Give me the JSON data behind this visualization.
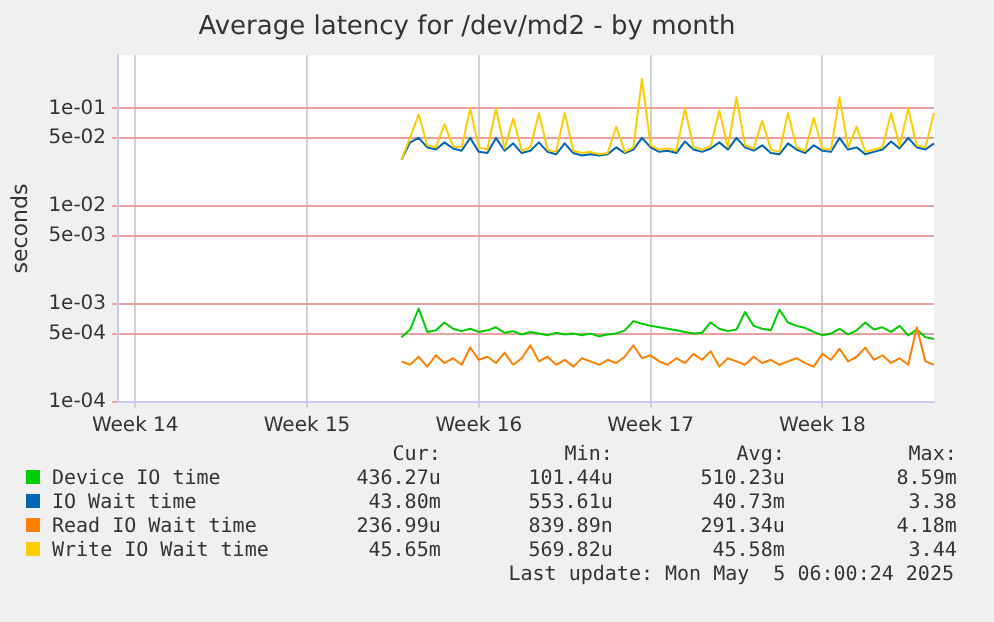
{
  "chart_data": {
    "type": "line",
    "title": "Average latency for /dev/md2 - by month",
    "ylabel": "seconds",
    "log": "y",
    "grid": true,
    "legend": "bottom",
    "marker": "none",
    "line_style": "solid",
    "ylim": [
      0.0001,
      0.35
    ],
    "yticks": [
      {
        "value": 0.1,
        "label": "1e-01"
      },
      {
        "value": 0.05,
        "label": "5e-02"
      },
      {
        "value": 0.01,
        "label": "1e-02"
      },
      {
        "value": 0.005,
        "label": "5e-03"
      },
      {
        "value": 0.001,
        "label": "1e-03"
      },
      {
        "value": 0.0005,
        "label": "5e-04"
      },
      {
        "value": 0.0001,
        "label": "1e-04"
      }
    ],
    "categories": [
      null,
      null,
      "Week 14",
      null,
      null,
      null,
      null,
      null,
      null,
      null,
      null,
      null,
      null,
      null,
      null,
      null,
      null,
      null,
      null,
      null,
      null,
      null,
      "Week 15",
      null,
      null,
      null,
      null,
      null,
      null,
      null,
      null,
      null,
      null,
      null,
      null,
      null,
      null,
      null,
      null,
      null,
      null,
      null,
      "Week 16",
      null,
      null,
      null,
      null,
      null,
      null,
      null,
      null,
      null,
      null,
      null,
      null,
      null,
      null,
      null,
      null,
      null,
      null,
      null,
      "Week 17",
      null,
      null,
      null,
      null,
      null,
      null,
      null,
      null,
      null,
      null,
      null,
      null,
      null,
      null,
      null,
      null,
      null,
      null,
      null,
      "Week 18",
      null,
      null,
      null,
      null,
      null,
      null,
      null,
      null,
      null,
      null,
      null,
      null,
      null
    ],
    "series": [
      {
        "name": "Device IO time",
        "color": "#00cc00",
        "values": [
          null,
          null,
          null,
          null,
          null,
          null,
          null,
          null,
          null,
          null,
          null,
          null,
          null,
          null,
          null,
          null,
          null,
          null,
          null,
          null,
          null,
          null,
          null,
          null,
          null,
          null,
          null,
          null,
          null,
          null,
          null,
          null,
          null,
          0.00046,
          0.00055,
          0.0009,
          0.00052,
          0.00054,
          0.00065,
          0.00056,
          0.00053,
          0.00056,
          0.00052,
          0.00054,
          0.00058,
          0.00051,
          0.00053,
          0.00049,
          0.00052,
          0.0005,
          0.00048,
          0.00051,
          0.00049,
          0.0005,
          0.00048,
          0.0005,
          0.00047,
          0.00049,
          0.0005,
          0.00054,
          0.00067,
          0.00063,
          0.0006,
          0.00058,
          0.00056,
          0.00054,
          0.00052,
          0.0005,
          0.00051,
          0.00065,
          0.00056,
          0.00053,
          0.00055,
          0.00083,
          0.0006,
          0.00056,
          0.00054,
          0.00088,
          0.00065,
          0.0006,
          0.00057,
          0.00052,
          0.00048,
          0.0005,
          0.00056,
          0.00049,
          0.00054,
          0.00065,
          0.00055,
          0.00058,
          0.00052,
          0.0006,
          0.00048,
          0.00055,
          0.00046,
          0.00044
        ]
      },
      {
        "name": "IO Wait time",
        "color": "#0066b3",
        "values": [
          null,
          null,
          null,
          null,
          null,
          null,
          null,
          null,
          null,
          null,
          null,
          null,
          null,
          null,
          null,
          null,
          null,
          null,
          null,
          null,
          null,
          null,
          null,
          null,
          null,
          null,
          null,
          null,
          null,
          null,
          null,
          null,
          null,
          0.03,
          0.045,
          0.05,
          0.04,
          0.038,
          0.045,
          0.039,
          0.037,
          0.05,
          0.036,
          0.035,
          0.05,
          0.037,
          0.044,
          0.035,
          0.037,
          0.045,
          0.036,
          0.034,
          0.044,
          0.035,
          0.033,
          0.034,
          0.033,
          0.034,
          0.04,
          0.035,
          0.038,
          0.05,
          0.04,
          0.036,
          0.037,
          0.035,
          0.046,
          0.038,
          0.036,
          0.039,
          0.045,
          0.038,
          0.05,
          0.04,
          0.037,
          0.042,
          0.035,
          0.034,
          0.044,
          0.038,
          0.035,
          0.042,
          0.037,
          0.036,
          0.05,
          0.038,
          0.04,
          0.034,
          0.036,
          0.038,
          0.046,
          0.039,
          0.05,
          0.04,
          0.038,
          0.044
        ]
      },
      {
        "name": "Read IO Wait time",
        "color": "#ff8000",
        "values": [
          null,
          null,
          null,
          null,
          null,
          null,
          null,
          null,
          null,
          null,
          null,
          null,
          null,
          null,
          null,
          null,
          null,
          null,
          null,
          null,
          null,
          null,
          null,
          null,
          null,
          null,
          null,
          null,
          null,
          null,
          null,
          null,
          null,
          0.00026,
          0.00024,
          0.00029,
          0.00023,
          0.0003,
          0.00025,
          0.00028,
          0.00024,
          0.00036,
          0.00027,
          0.00029,
          0.00025,
          0.00032,
          0.00024,
          0.00028,
          0.00038,
          0.00026,
          0.00029,
          0.00024,
          0.00027,
          0.00023,
          0.00028,
          0.00026,
          0.00024,
          0.00027,
          0.00025,
          0.00029,
          0.00038,
          0.00028,
          0.0003,
          0.00026,
          0.00024,
          0.00028,
          0.00025,
          0.00031,
          0.00027,
          0.00033,
          0.00023,
          0.00028,
          0.00026,
          0.00024,
          0.00029,
          0.00025,
          0.00027,
          0.00024,
          0.00026,
          0.00028,
          0.00025,
          0.00023,
          0.00031,
          0.00027,
          0.00035,
          0.00026,
          0.00029,
          0.00036,
          0.00027,
          0.0003,
          0.00025,
          0.00028,
          0.00024,
          0.00058,
          0.00026,
          0.00024
        ]
      },
      {
        "name": "Write IO Wait time",
        "color": "#ffcc00",
        "values": [
          null,
          null,
          null,
          null,
          null,
          null,
          null,
          null,
          null,
          null,
          null,
          null,
          null,
          null,
          null,
          null,
          null,
          null,
          null,
          null,
          null,
          null,
          null,
          null,
          null,
          null,
          null,
          null,
          null,
          null,
          null,
          null,
          null,
          0.03,
          0.05,
          0.087,
          0.042,
          0.04,
          0.069,
          0.041,
          0.04,
          0.1,
          0.04,
          0.038,
          0.1,
          0.039,
          0.079,
          0.037,
          0.04,
          0.09,
          0.038,
          0.036,
          0.09,
          0.037,
          0.035,
          0.036,
          0.034,
          0.035,
          0.065,
          0.036,
          0.04,
          0.2,
          0.042,
          0.038,
          0.039,
          0.037,
          0.1,
          0.04,
          0.038,
          0.041,
          0.095,
          0.04,
          0.13,
          0.042,
          0.039,
          0.075,
          0.038,
          0.036,
          0.09,
          0.04,
          0.037,
          0.08,
          0.039,
          0.038,
          0.13,
          0.04,
          0.065,
          0.036,
          0.038,
          0.04,
          0.09,
          0.041,
          0.1,
          0.042,
          0.04,
          0.09
        ]
      }
    ],
    "annotations": [
      "Cur:",
      "Min:",
      "Avg:",
      "Max:",
      "436.27u",
      "101.44u",
      "510.23u",
      "8.59m",
      "43.80m",
      "553.61u",
      "40.73m",
      "3.38",
      "236.99u",
      "839.89n",
      "291.34u",
      "4.18m",
      "45.65m",
      "569.82u",
      "45.58m",
      "3.44",
      "Last update: Mon May  5 06:00:24 2025"
    ]
  }
}
